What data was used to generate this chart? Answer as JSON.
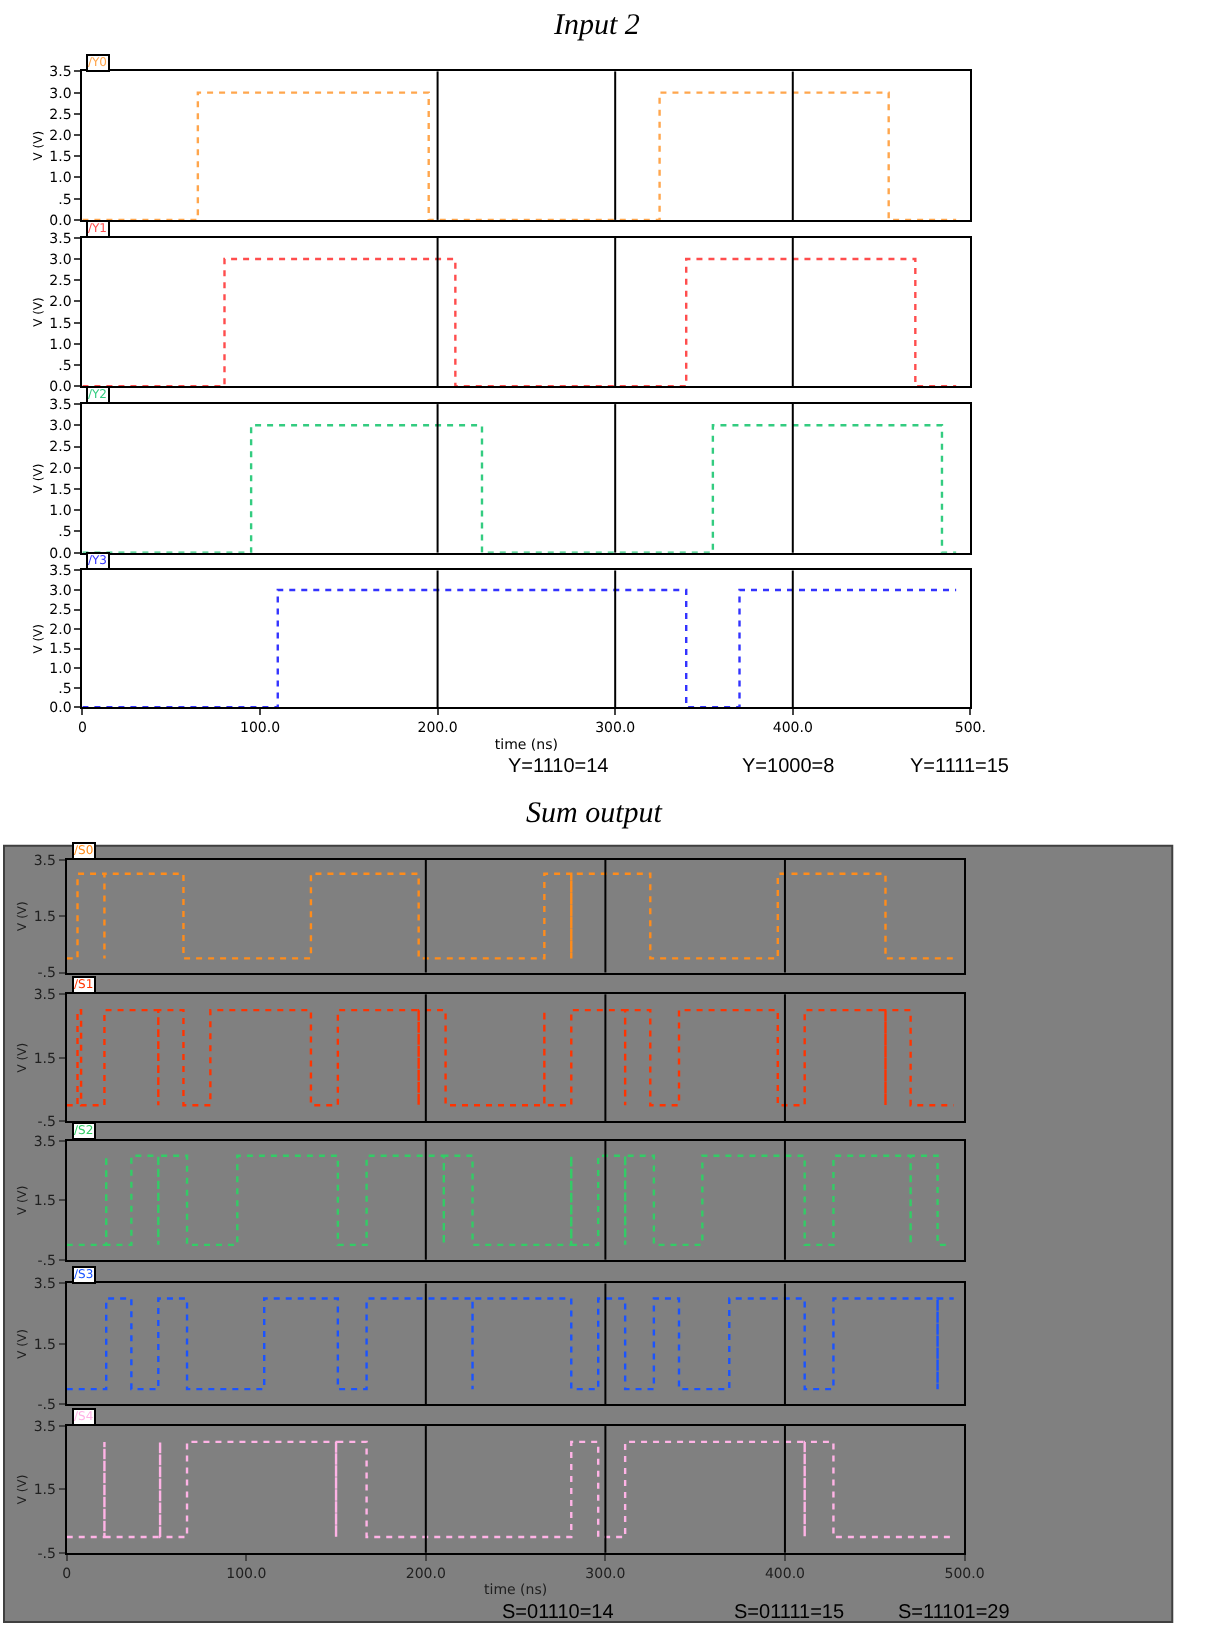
{
  "chart_data": [
    {
      "type": "step",
      "title": "Input 2",
      "ylabel": "V (V)",
      "line_style": "dotted",
      "marker": "none",
      "grid": false,
      "tick_labels": "y",
      "xlim": [
        0,
        500
      ],
      "ylim": [
        0,
        3.5
      ],
      "yticks": [
        {
          "value": 0,
          "label": "0.0"
        },
        {
          "value": 0.5,
          "label": ".5"
        },
        {
          "value": 1,
          "label": "1.0"
        },
        {
          "value": 1.5,
          "label": "1.5"
        },
        {
          "value": 2,
          "label": "2.0"
        },
        {
          "value": 2.5,
          "label": "2.5"
        },
        {
          "value": 3,
          "label": "3.0"
        },
        {
          "value": 3.5,
          "label": "3.5"
        }
      ],
      "series": [
        {
          "name": "/Y0",
          "color": "#ffa64d",
          "x": [
            0,
            65,
            195,
            325,
            454,
            492
          ],
          "values": [
            0,
            3,
            0,
            3,
            0,
            0
          ]
        }
      ],
      "ref_lines": [
        {
          "axis": "x",
          "value": 200,
          "color": "#000000"
        },
        {
          "axis": "x",
          "value": 300,
          "color": "#000000"
        },
        {
          "axis": "x",
          "value": 400,
          "color": "#000000"
        }
      ]
    },
    {
      "type": "step",
      "ylabel": "V (V)",
      "line_style": "dotted",
      "marker": "none",
      "grid": false,
      "tick_labels": "y",
      "xlim": [
        0,
        500
      ],
      "ylim": [
        0,
        3.5
      ],
      "yticks": [
        {
          "value": 0,
          "label": "0.0"
        },
        {
          "value": 0.5,
          "label": ".5"
        },
        {
          "value": 1,
          "label": "1.0"
        },
        {
          "value": 1.5,
          "label": "1.5"
        },
        {
          "value": 2,
          "label": "2.0"
        },
        {
          "value": 2.5,
          "label": "2.5"
        },
        {
          "value": 3,
          "label": "3.0"
        },
        {
          "value": 3.5,
          "label": "3.5"
        }
      ],
      "series": [
        {
          "name": "/Y1",
          "color": "#ff4d4d",
          "x": [
            0,
            80,
            210,
            340,
            469,
            492
          ],
          "values": [
            0,
            3,
            0,
            3,
            0,
            0
          ]
        }
      ],
      "ref_lines": [
        {
          "axis": "x",
          "value": 200,
          "color": "#000000"
        },
        {
          "axis": "x",
          "value": 300,
          "color": "#000000"
        },
        {
          "axis": "x",
          "value": 400,
          "color": "#000000"
        }
      ]
    },
    {
      "type": "step",
      "ylabel": "V (V)",
      "line_style": "dotted",
      "marker": "none",
      "grid": false,
      "tick_labels": "y",
      "xlim": [
        0,
        500
      ],
      "ylim": [
        0,
        3.5
      ],
      "yticks": [
        {
          "value": 0,
          "label": "0.0"
        },
        {
          "value": 0.5,
          "label": ".5"
        },
        {
          "value": 1,
          "label": "1.0"
        },
        {
          "value": 1.5,
          "label": "1.5"
        },
        {
          "value": 2,
          "label": "2.0"
        },
        {
          "value": 2.5,
          "label": "2.5"
        },
        {
          "value": 3,
          "label": "3.0"
        },
        {
          "value": 3.5,
          "label": "3.5"
        }
      ],
      "series": [
        {
          "name": "/Y2",
          "color": "#33cc80",
          "x": [
            0,
            95,
            225,
            355,
            484,
            492
          ],
          "values": [
            0,
            3,
            0,
            3,
            0,
            0
          ]
        }
      ],
      "ref_lines": [
        {
          "axis": "x",
          "value": 200,
          "color": "#000000"
        },
        {
          "axis": "x",
          "value": 300,
          "color": "#000000"
        },
        {
          "axis": "x",
          "value": 400,
          "color": "#000000"
        }
      ]
    },
    {
      "type": "step",
      "ylabel": "V (V)",
      "xlabel": "time (ns)",
      "line_style": "dotted",
      "marker": "none",
      "grid": false,
      "xlim": [
        0,
        500
      ],
      "xticks": [
        {
          "value": 0,
          "label": "0"
        },
        {
          "value": 100,
          "label": "100.0"
        },
        {
          "value": 200,
          "label": "200.0"
        },
        {
          "value": 300,
          "label": "300.0"
        },
        {
          "value": 400,
          "label": "400.0"
        },
        {
          "value": 500,
          "label": "500."
        }
      ],
      "ylim": [
        0,
        3.5
      ],
      "yticks": [
        {
          "value": 0,
          "label": "0.0"
        },
        {
          "value": 0.5,
          "label": ".5"
        },
        {
          "value": 1,
          "label": "1.0"
        },
        {
          "value": 1.5,
          "label": "1.5"
        },
        {
          "value": 2,
          "label": "2.0"
        },
        {
          "value": 2.5,
          "label": "2.5"
        },
        {
          "value": 3,
          "label": "3.0"
        },
        {
          "value": 3.5,
          "label": "3.5"
        }
      ],
      "series": [
        {
          "name": "/Y3",
          "color": "#3333ff",
          "x": [
            0,
            110,
            340,
            370,
            492
          ],
          "values": [
            0,
            3,
            0,
            3,
            3
          ]
        }
      ],
      "ref_lines": [
        {
          "axis": "x",
          "value": 200,
          "color": "#000000"
        },
        {
          "axis": "x",
          "value": 300,
          "color": "#000000"
        },
        {
          "axis": "x",
          "value": 400,
          "color": "#000000"
        }
      ],
      "annotations": [
        "Y=1110=14",
        "Y=1000=8",
        "Y=1111=15"
      ]
    },
    {
      "type": "step",
      "title": "Sum output",
      "ylabel": "V (V)",
      "line_style": "dotted",
      "marker": "none",
      "grid": false,
      "tick_labels": "y",
      "xlim": [
        0,
        500
      ],
      "ylim": [
        -0.5,
        3.5
      ],
      "yticks": [
        {
          "value": -0.5,
          "label": "-.5"
        },
        {
          "value": 1.5,
          "label": "1.5"
        },
        {
          "value": 3.5,
          "label": "3.5"
        }
      ],
      "series": [
        {
          "name": "/S0",
          "color": "#ff8c1a",
          "x": [
            0,
            6,
            21,
            21,
            65,
            136,
            196,
            266,
            281,
            281,
            325,
            396,
            456,
            494
          ],
          "values": [
            0,
            3,
            0,
            3,
            0,
            3,
            0,
            3,
            0,
            3,
            0,
            3,
            0,
            0
          ]
        }
      ],
      "ref_lines": [
        {
          "axis": "x",
          "value": 200,
          "color": "#000000"
        },
        {
          "axis": "x",
          "value": 300,
          "color": "#000000"
        },
        {
          "axis": "x",
          "value": 400,
          "color": "#000000"
        }
      ]
    },
    {
      "type": "step",
      "ylabel": "V (V)",
      "line_style": "dotted",
      "marker": "none",
      "grid": false,
      "tick_labels": "y",
      "xlim": [
        0,
        500
      ],
      "ylim": [
        -0.5,
        3.5
      ],
      "yticks": [
        {
          "value": -0.5,
          "label": "-.5"
        },
        {
          "value": 1.5,
          "label": "1.5"
        },
        {
          "value": 3.5,
          "label": "3.5"
        }
      ],
      "series": [
        {
          "name": "/S1",
          "color": "#ff3300",
          "x": [
            0,
            6,
            8,
            21,
            51,
            51,
            65,
            80,
            136,
            151,
            196,
            196,
            211,
            266,
            266,
            281,
            311,
            311,
            325,
            341,
            396,
            411,
            456,
            456,
            470,
            494
          ],
          "values": [
            0,
            3,
            0,
            3,
            0,
            3,
            0,
            3,
            0,
            3,
            0,
            3,
            0,
            3,
            0,
            3,
            0,
            3,
            0,
            3,
            0,
            3,
            0,
            3,
            0,
            0
          ]
        }
      ],
      "ref_lines": [
        {
          "axis": "x",
          "value": 200,
          "color": "#000000"
        },
        {
          "axis": "x",
          "value": 300,
          "color": "#000000"
        },
        {
          "axis": "x",
          "value": 400,
          "color": "#000000"
        }
      ]
    },
    {
      "type": "step",
      "ylabel": "V (V)",
      "line_style": "dotted",
      "marker": "none",
      "grid": false,
      "tick_labels": "y",
      "xlim": [
        0,
        500
      ],
      "ylim": [
        -0.5,
        3.5
      ],
      "yticks": [
        {
          "value": -0.5,
          "label": "-.5"
        },
        {
          "value": 1.5,
          "label": "1.5"
        },
        {
          "value": 3.5,
          "label": "3.5"
        }
      ],
      "series": [
        {
          "name": "/S2",
          "color": "#33cc66",
          "x": [
            0,
            22,
            22,
            36,
            51,
            51,
            67,
            95,
            151,
            167,
            210,
            210,
            226,
            281,
            281,
            296,
            311,
            311,
            327,
            354,
            411,
            427,
            470,
            470,
            485,
            492
          ],
          "values": [
            0,
            3,
            0,
            3,
            0,
            3,
            0,
            3,
            0,
            3,
            0,
            3,
            0,
            3,
            0,
            3,
            0,
            3,
            0,
            3,
            0,
            3,
            0,
            3,
            0,
            0
          ]
        }
      ],
      "ref_lines": [
        {
          "axis": "x",
          "value": 200,
          "color": "#000000"
        },
        {
          "axis": "x",
          "value": 300,
          "color": "#000000"
        },
        {
          "axis": "x",
          "value": 400,
          "color": "#000000"
        }
      ]
    },
    {
      "type": "step",
      "ylabel": "V (V)",
      "line_style": "dotted",
      "marker": "none",
      "grid": false,
      "tick_labels": "y",
      "xlim": [
        0,
        500
      ],
      "ylim": [
        -0.5,
        3.5
      ],
      "yticks": [
        {
          "value": -0.5,
          "label": "-.5"
        },
        {
          "value": 1.5,
          "label": "1.5"
        },
        {
          "value": 3.5,
          "label": "3.5"
        }
      ],
      "series": [
        {
          "name": "/S3",
          "color": "#1a53ff",
          "x": [
            0,
            22,
            36,
            51,
            67,
            110,
            151,
            167,
            226,
            226,
            281,
            296,
            311,
            327,
            341,
            369,
            411,
            427,
            485,
            485,
            494
          ],
          "values": [
            0,
            3,
            0,
            3,
            0,
            3,
            0,
            3,
            0,
            3,
            0,
            3,
            0,
            3,
            0,
            3,
            0,
            3,
            0,
            3,
            3
          ]
        }
      ],
      "ref_lines": [
        {
          "axis": "x",
          "value": 200,
          "color": "#000000"
        },
        {
          "axis": "x",
          "value": 300,
          "color": "#000000"
        },
        {
          "axis": "x",
          "value": 400,
          "color": "#000000"
        }
      ]
    },
    {
      "type": "step",
      "ylabel": "V (V)",
      "xlabel": "time (ns)",
      "line_style": "dotted",
      "marker": "none",
      "grid": false,
      "xlim": [
        0,
        500
      ],
      "xticks": [
        {
          "value": 0,
          "label": "0"
        },
        {
          "value": 100,
          "label": "100.0"
        },
        {
          "value": 200,
          "label": "200.0"
        },
        {
          "value": 300,
          "label": "300.0"
        },
        {
          "value": 400,
          "label": "400.0"
        },
        {
          "value": 500,
          "label": "500.0"
        }
      ],
      "ylim": [
        -0.5,
        3.5
      ],
      "yticks": [
        {
          "value": -0.5,
          "label": "-.5"
        },
        {
          "value": 1.5,
          "label": "1.5"
        },
        {
          "value": 3.5,
          "label": "3.5"
        }
      ],
      "series": [
        {
          "name": "/S4",
          "color": "#ffb3e6",
          "x": [
            0,
            21,
            21,
            52,
            52,
            67,
            150,
            150,
            167,
            281,
            296,
            311,
            411,
            411,
            427,
            494
          ],
          "values": [
            0,
            3,
            0,
            3,
            0,
            3,
            0,
            3,
            0,
            3,
            0,
            3,
            0,
            3,
            0,
            0
          ]
        }
      ],
      "ref_lines": [
        {
          "axis": "x",
          "value": 200,
          "color": "#000000"
        },
        {
          "axis": "x",
          "value": 300,
          "color": "#000000"
        },
        {
          "axis": "x",
          "value": 400,
          "color": "#000000"
        }
      ],
      "annotations": [
        "S=01110=14",
        "S=01111=15",
        "S=11101=29"
      ]
    }
  ]
}
